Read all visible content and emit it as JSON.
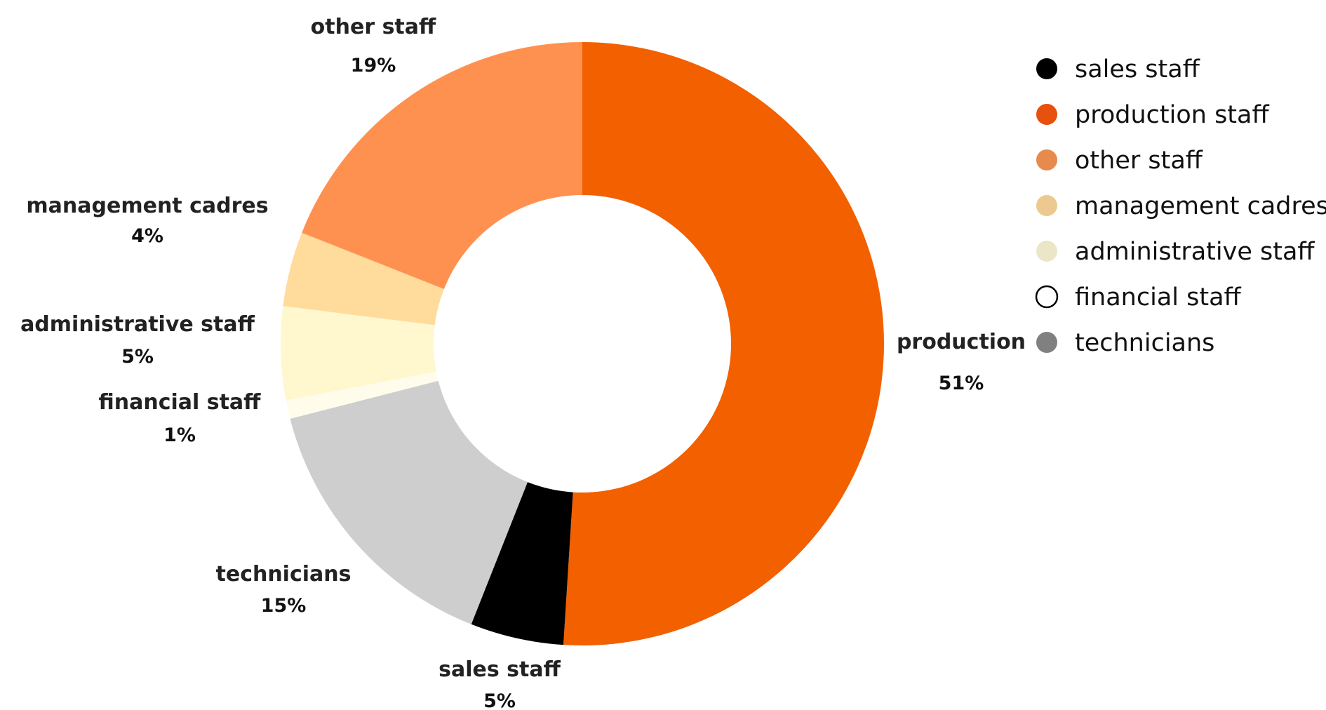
{
  "chart_data": {
    "type": "pie",
    "donut": true,
    "slices": [
      {
        "label": "production",
        "value": 51,
        "display": "51%",
        "color": "#F26000"
      },
      {
        "label": "sales staff",
        "value": 5,
        "display": "5%",
        "color": "#000000"
      },
      {
        "label": "technicians",
        "value": 15,
        "display": "15%",
        "color": "#CECECE"
      },
      {
        "label": "financial staff",
        "value": 1,
        "display": "1%",
        "color": "#FFFCEB"
      },
      {
        "label": "administrative staff",
        "value": 5,
        "display": "5%",
        "color": "#FFF7CE"
      },
      {
        "label": "management cadres",
        "value": 4,
        "display": "4%",
        "color": "#FFDB9C"
      },
      {
        "label": "other staff",
        "value": 19,
        "display": "19%",
        "color": "#FF9150"
      }
    ],
    "legend": {
      "position": "top-right",
      "items": [
        {
          "label": "sales staff",
          "color": "#000000",
          "outline": false
        },
        {
          "label": "production staff",
          "color": "#E8500E",
          "outline": false
        },
        {
          "label": "other staff",
          "color": "#E8894E",
          "outline": false
        },
        {
          "label": "management cadres",
          "color": "#EDC98F",
          "outline": false
        },
        {
          "label": "administrative staff",
          "color": "#EBE6C6",
          "outline": false
        },
        {
          "label": "financial staff",
          "color": "#FFFFFF",
          "outline": true
        },
        {
          "label": "technicians",
          "color": "#808080",
          "outline": false
        }
      ]
    }
  }
}
